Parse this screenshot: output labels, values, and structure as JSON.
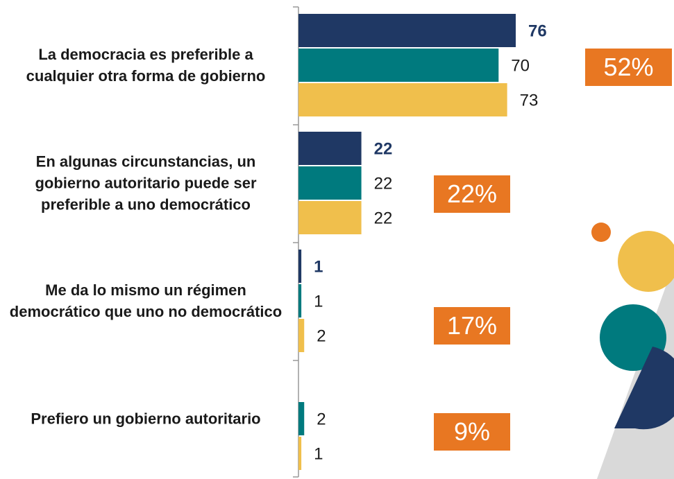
{
  "chart_data": {
    "type": "bar",
    "orientation": "horizontal",
    "categories": [
      "La democracia es preferible a cualquier otra forma de gobierno",
      "En algunas circunstancias, un gobierno autoritario puede ser preferible a uno democrático",
      "Me da lo mismo un régimen democrático que uno no democrático",
      "Prefiero un gobierno autoritario"
    ],
    "series": [
      {
        "color": "#1f3864",
        "values": [
          76,
          22,
          1,
          null
        ]
      },
      {
        "color": "#007a7e",
        "values": [
          70,
          22,
          1,
          2
        ]
      },
      {
        "color": "#f0bf4c",
        "values": [
          73,
          22,
          2,
          1
        ]
      }
    ],
    "annotations": [
      "52%",
      "22%",
      "17%",
      "9%"
    ],
    "annotation_color": "#e87722"
  }
}
